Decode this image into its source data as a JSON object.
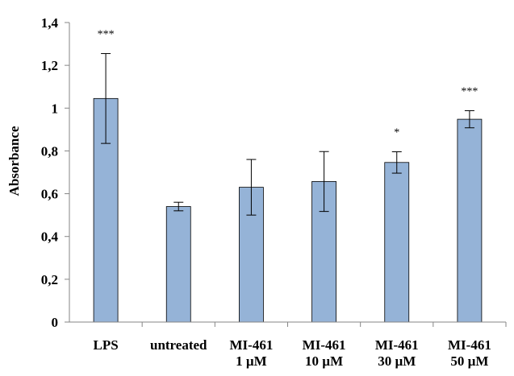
{
  "chart_data": {
    "type": "bar",
    "title": "",
    "xlabel": "",
    "ylabel": "Absorbance",
    "ylim": [
      0,
      1.4
    ],
    "yticks": [
      "0",
      "0,2",
      "0,4",
      "0,6",
      "0,8",
      "1",
      "1,2",
      "1,4"
    ],
    "grid": false,
    "legend": "none",
    "bar_color": "#95b3d7",
    "bar_edge_color": "#000000",
    "categories": [
      [
        "LPS"
      ],
      [
        "untreated"
      ],
      [
        "MI-461",
        "1 µM"
      ],
      [
        "MI-461",
        "10 µM"
      ],
      [
        "MI-461",
        "30 µM"
      ],
      [
        "MI-461",
        "50 µM"
      ]
    ],
    "values": [
      1.045,
      0.54,
      0.63,
      0.657,
      0.746,
      0.948
    ],
    "error": [
      0.21,
      0.02,
      0.13,
      0.14,
      0.05,
      0.04
    ],
    "significance": [
      "***",
      "",
      "",
      "",
      "*",
      "***"
    ]
  }
}
